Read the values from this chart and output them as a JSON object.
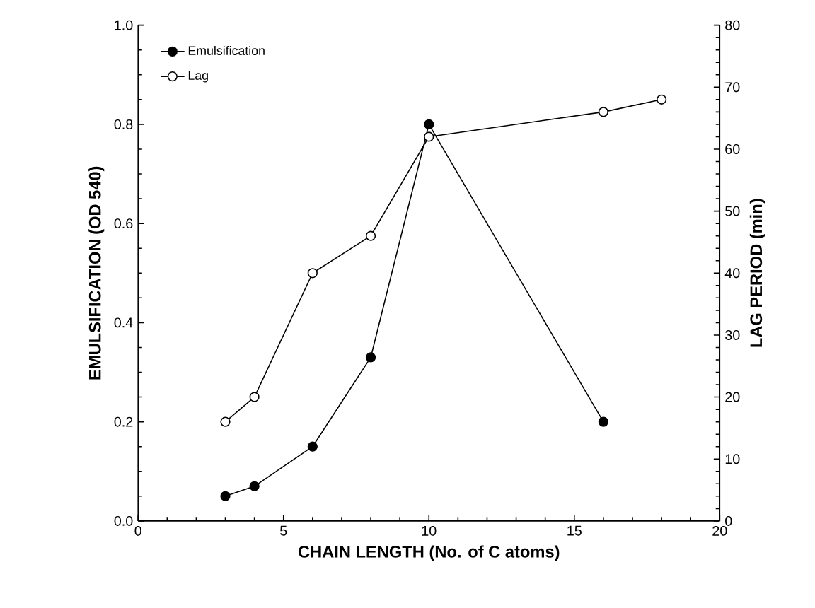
{
  "chart_data": {
    "type": "line",
    "xlabel": "CHAIN LENGTH (No. of C atoms)",
    "ylabel": "EMULSIFICATION (OD 540)",
    "y2label": "LAG PERIOD (min)",
    "series": [
      {
        "name": "Emulsification",
        "color": "#000000",
        "axis": "y",
        "x": [
          3,
          4,
          6,
          8,
          10,
          16
        ],
        "values": [
          0.05,
          0.07,
          0.15,
          0.33,
          0.8,
          0.2
        ]
      },
      {
        "name": "Lag",
        "color": "#000000",
        "axis": "y2",
        "x": [
          3,
          4,
          6,
          8,
          10,
          16,
          18
        ],
        "values": [
          16,
          20,
          40,
          46,
          62,
          66,
          68
        ]
      }
    ],
    "xlim": [
      0,
      20
    ],
    "xticks": [
      0,
      5,
      10,
      15,
      20
    ],
    "ylim": [
      0,
      1.0
    ],
    "yticks": [
      {
        "value": 0,
        "label": "0.0"
      },
      {
        "value": 0.2,
        "label": "0.2"
      },
      {
        "value": 0.4,
        "label": "0.4"
      },
      {
        "value": 0.6,
        "label": "0.6"
      },
      {
        "value": 0.8,
        "label": "0.8"
      },
      {
        "value": 1.0,
        "label": "1.0"
      }
    ],
    "y2lim": [
      0,
      80
    ],
    "y2ticks": [
      0,
      10,
      20,
      30,
      40,
      50,
      60,
      70,
      80
    ],
    "marker": "circle",
    "line_style": "solid",
    "legend": "top left",
    "grid": false
  }
}
